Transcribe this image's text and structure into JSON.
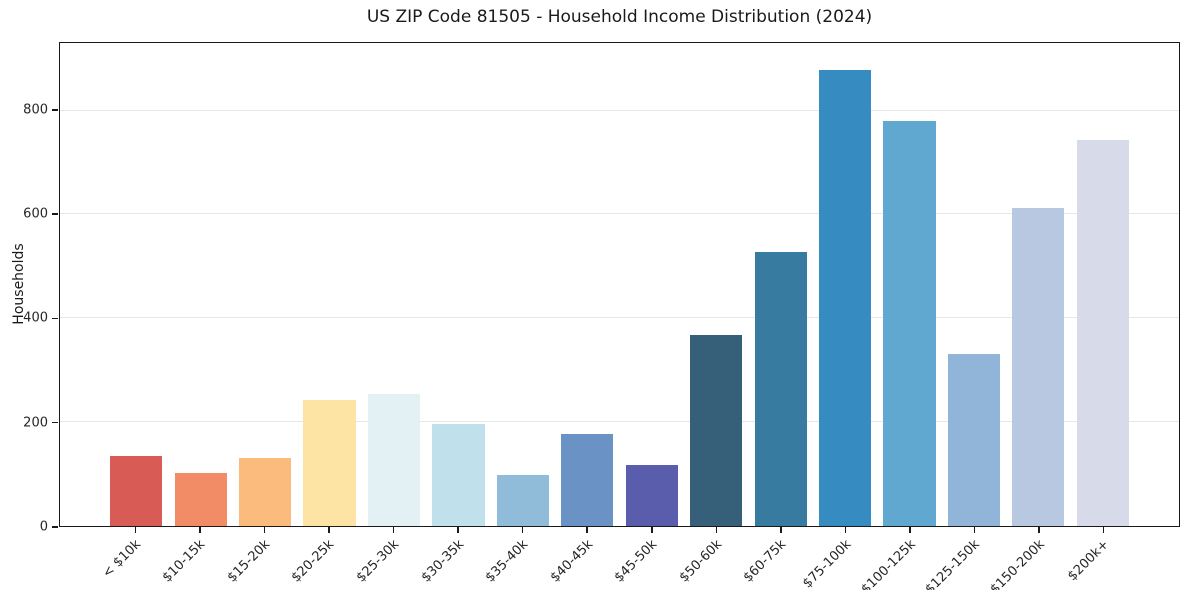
{
  "chart_data": {
    "type": "bar",
    "title": "US ZIP Code 81505 - Household Income Distribution (2024)",
    "xlabel": "",
    "ylabel": "Households",
    "categories": [
      "< $10k",
      "$10-15k",
      "$15-20k",
      "$20-25k",
      "$25-30k",
      "$30-35k",
      "$35-40k",
      "$40-45k",
      "$45-50k",
      "$50-60k",
      "$60-75k",
      "$75-100k",
      "$100-125k",
      "$125-150k",
      "$150-200k",
      "$200k+"
    ],
    "values": [
      134,
      102,
      130,
      242,
      254,
      196,
      98,
      177,
      118,
      368,
      528,
      878,
      780,
      331,
      612,
      743
    ],
    "bar_colors": [
      "#d85b55",
      "#f28c67",
      "#fbbb7c",
      "#fde4a4",
      "#e3f0f4",
      "#c0e0ec",
      "#90bcda",
      "#6b92c4",
      "#5a5cac",
      "#36607a",
      "#377ba0",
      "#368bc1",
      "#60a8cf",
      "#90b5d8",
      "#b7c8e0",
      "#d7dae8"
    ],
    "ylim": [
      0,
      930
    ],
    "yticks": [
      0,
      200,
      400,
      600,
      800
    ],
    "grid": "horizontal-major-only",
    "legend": "none"
  },
  "style": {
    "grid_color": "#e7e7e7",
    "spine_color": "#1a1a1a",
    "text_color": "#262626",
    "background": "#ffffff"
  }
}
